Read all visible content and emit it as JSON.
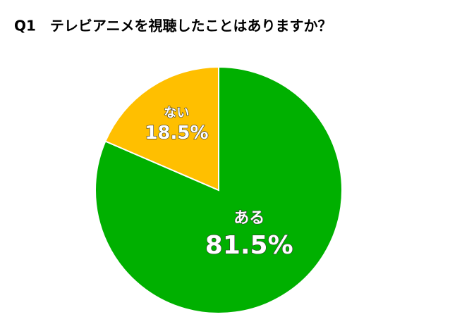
{
  "chart_data": {
    "type": "pie",
    "title": "Q1　テレビアニメを視聴したことはありますか？",
    "categories": [
      "ある",
      "ない"
    ],
    "values": [
      81.5,
      18.5
    ],
    "value_labels": [
      "81.5%",
      "18.5%"
    ],
    "colors": [
      "#00b000",
      "#ffbf00"
    ]
  }
}
